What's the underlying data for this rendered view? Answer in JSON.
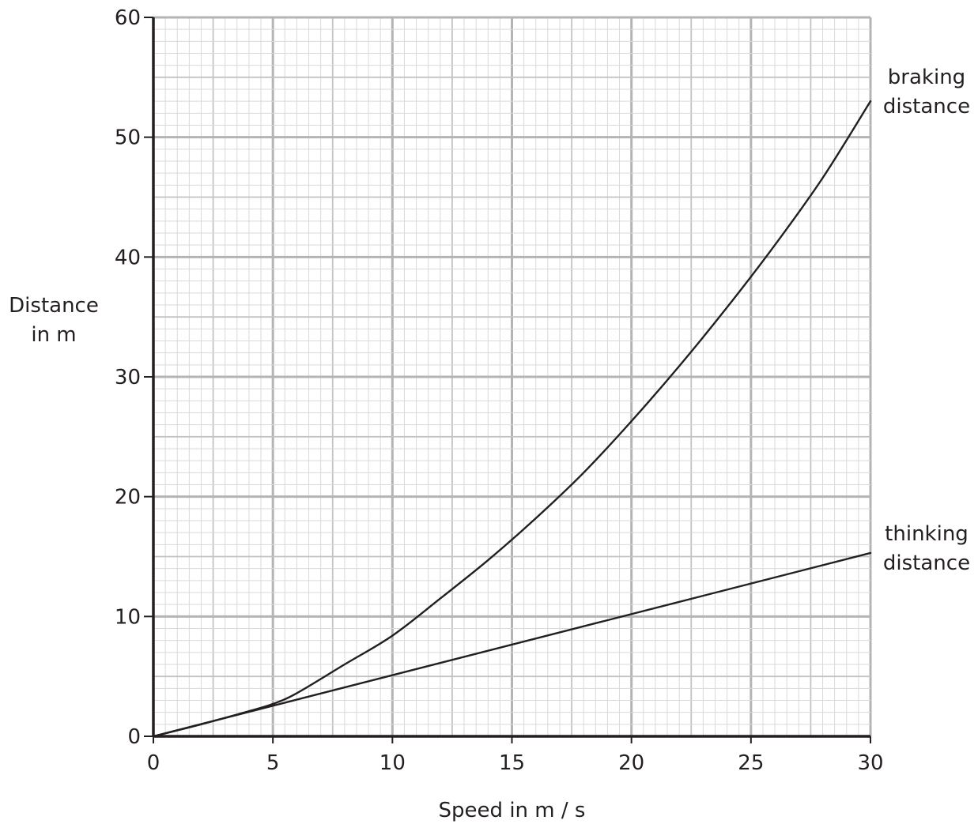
{
  "chart_data": {
    "type": "line",
    "title": "",
    "xlabel": "Speed in m / s",
    "ylabel_lines": [
      "Distance",
      "in m"
    ],
    "xlim": [
      0,
      30
    ],
    "ylim": [
      0,
      60
    ],
    "x_ticks": [
      0,
      5,
      10,
      15,
      20,
      25,
      30
    ],
    "y_ticks": [
      0,
      10,
      20,
      30,
      40,
      50,
      60
    ],
    "grid": true,
    "grid_major_x": 5,
    "grid_mid_x": 2.5,
    "grid_minor_x": 0.5,
    "grid_major_y": 10,
    "grid_mid_y": 5,
    "grid_minor_y": 1,
    "series": [
      {
        "name_lines": [
          "braking",
          "distance"
        ],
        "x": [
          0,
          2,
          4,
          5,
          6,
          8,
          10,
          12,
          14,
          16,
          18,
          20,
          22,
          24,
          26,
          28,
          30
        ],
        "y": [
          0,
          1.0,
          2.1,
          2.7,
          3.6,
          6.0,
          8.4,
          11.5,
          14.7,
          18.2,
          22.0,
          26.3,
          30.9,
          35.8,
          41.0,
          46.6,
          53.0
        ]
      },
      {
        "name_lines": [
          "thinking",
          "distance"
        ],
        "x": [
          0,
          30
        ],
        "y": [
          0,
          15.3
        ]
      }
    ],
    "colors": {
      "line": "#231f20",
      "axis": "#231f20",
      "grid_major": "#b4b4b4",
      "grid_mid": "#c3c3c3",
      "grid_minor": "#d9d9d9"
    }
  }
}
